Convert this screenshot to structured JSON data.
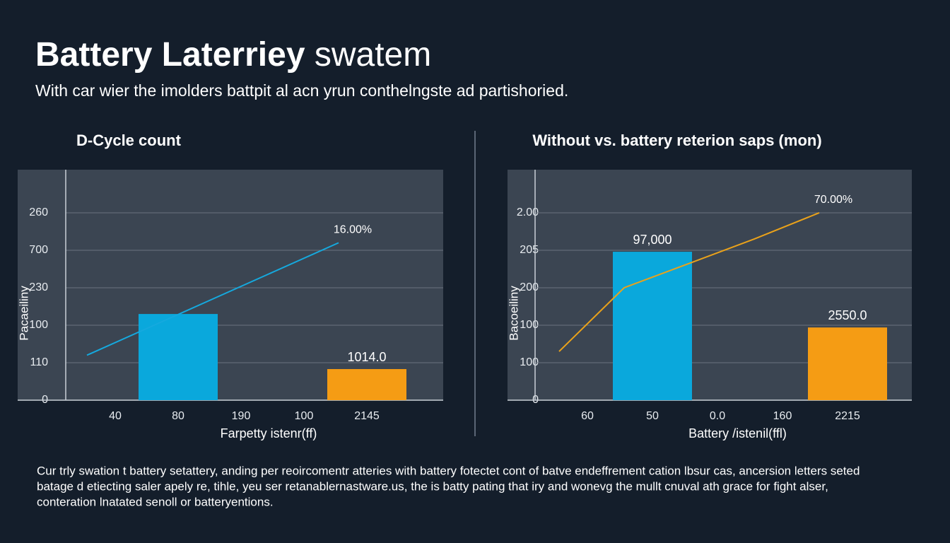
{
  "header": {
    "title_bold": "Battery Laterriey",
    "title_light": "swatem",
    "subtitle": "With car wier the imolders battpit al acn yrun conthelngste ad partishoried."
  },
  "chart_data": [
    {
      "type": "bar",
      "title": "D-Cycle count",
      "x_label": "Farpetty istenr(ff)",
      "y_label": "Pacaeiliny",
      "categories": [
        "40",
        "80",
        "190",
        "100",
        "2145"
      ],
      "ylim": [
        0,
        6.15
      ],
      "yticks": [
        0,
        {
          "value": 1,
          "label": "110"
        },
        {
          "value": 2,
          "label": "100"
        },
        {
          "value": 3,
          "label": "230"
        },
        {
          "value": 4,
          "label": "700"
        },
        {
          "value": 5,
          "label": "260"
        }
      ],
      "grid": true,
      "series": [
        {
          "type": "bar",
          "color": "#0aa8dc",
          "values": [
            null,
            2.3,
            null,
            null,
            null
          ]
        },
        {
          "type": "bar",
          "color": "#f59c14",
          "values": [
            null,
            null,
            null,
            null,
            0.83
          ],
          "label": "1014.0"
        },
        {
          "type": "line",
          "color": "#15a9de",
          "values": [
            1.2,
            1.95,
            2.7,
            3.45,
            4.2
          ],
          "label": "16.00%"
        }
      ]
    },
    {
      "type": "bar",
      "title": "Without vs. battery reterion saps (mon)",
      "x_label": "Battery /istenil(ffl)",
      "y_label": "Bacoeiliny",
      "categories": [
        "60",
        "50",
        "0.0",
        "160",
        "2215"
      ],
      "ylim": [
        0,
        6.15
      ],
      "yticks": [
        0,
        {
          "value": 1,
          "label": "100"
        },
        {
          "value": 2,
          "label": "100"
        },
        {
          "value": 3,
          "label": "200"
        },
        {
          "value": 4,
          "label": "205"
        },
        {
          "value": 5,
          "label": "2.00"
        }
      ],
      "grid": true,
      "series": [
        {
          "type": "bar",
          "color": "#0aa8dc",
          "values": [
            null,
            3.96,
            null,
            null,
            null
          ],
          "label": "97,000"
        },
        {
          "type": "bar",
          "color": "#f59c14",
          "values": [
            null,
            null,
            null,
            null,
            1.94
          ],
          "label": "2550.0"
        },
        {
          "type": "line",
          "color": "#eaa21a",
          "values": [
            1.3,
            3.0,
            3.65,
            4.3,
            5.0
          ],
          "label": "70.00%"
        }
      ]
    }
  ],
  "footer": {
    "lines": [
      "Cur trly swation t battery setattery, anding per reoircomentr atteries with battery fotectet cont of batve endeffrement cation lbsur cas, ancersion letters seted",
      "batage d etiecting saler apely re, tihle, yeu ser retanablernastware.us, the is batty pating that iry and wonevg the mullt cnuval ath grace for fight alser,",
      "conteration lnatated senoll or batteryentions."
    ]
  }
}
